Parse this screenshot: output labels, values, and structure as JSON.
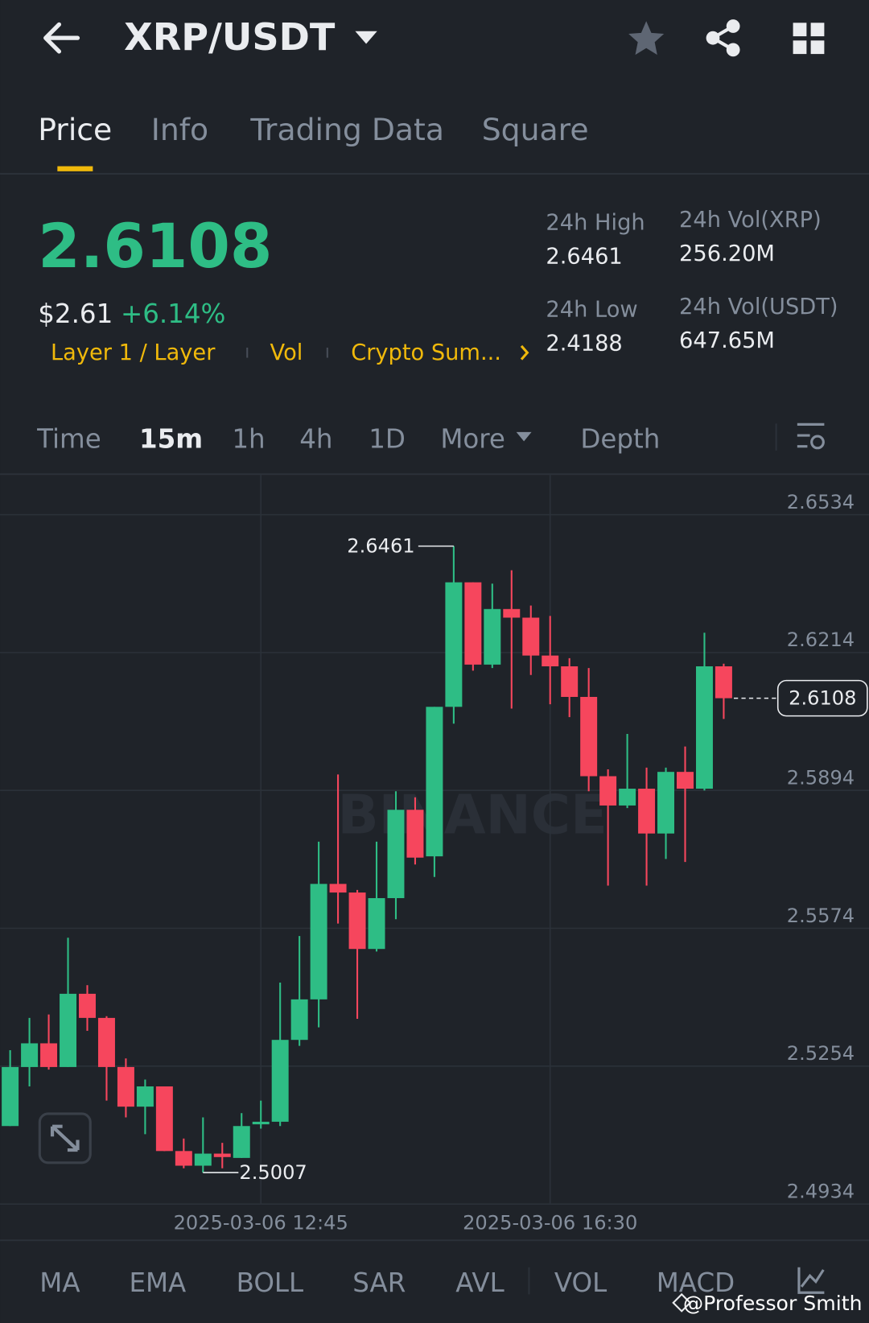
{
  "header": {
    "pair": "XRP/USDT"
  },
  "tabs": [
    "Price",
    "Info",
    "Trading Data",
    "Square"
  ],
  "ticker": {
    "price": "2.6108",
    "fiat": "$2.61",
    "change": "+6.14%",
    "tags": [
      "Layer 1 / Layer",
      "Vol",
      "Crypto Sum..."
    ],
    "stats": [
      {
        "label": "24h High",
        "value": "2.6461"
      },
      {
        "label": "24h Vol(XRP)",
        "value": "256.20M"
      },
      {
        "label": "24h Low",
        "value": "2.4188"
      },
      {
        "label": "24h Vol(USDT)",
        "value": "647.65M"
      }
    ]
  },
  "intervals": [
    "Time",
    "15m",
    "1h",
    "4h",
    "1D",
    "More",
    "Depth"
  ],
  "chart_data": {
    "type": "candlestick",
    "categories": [
      null,
      null,
      null,
      null,
      null,
      null,
      null,
      null,
      null,
      null,
      null,
      null,
      null,
      "2025-03-06 12:45",
      null,
      null,
      null,
      null,
      null,
      null,
      null,
      null,
      null,
      null,
      null,
      null,
      null,
      null,
      "2025-03-06 16:30",
      null,
      null,
      null,
      null,
      null,
      null,
      null,
      null,
      null
    ],
    "open": [
      2.5115,
      2.5252,
      2.5307,
      2.5252,
      2.5422,
      2.5366,
      2.5252,
      2.516,
      2.5207,
      2.5057,
      2.5023,
      2.5051,
      2.5041,
      2.5119,
      2.5125,
      2.5315,
      2.5409,
      2.5677,
      2.5657,
      2.5526,
      2.5644,
      2.5849,
      2.5741,
      2.6088,
      2.6377,
      2.6186,
      2.6315,
      2.6295,
      2.6207,
      2.6182,
      2.6111,
      2.5927,
      2.5859,
      2.5898,
      2.5794,
      2.5937,
      2.5898,
      2.6182
    ],
    "high": [
      2.5291,
      2.5366,
      2.5374,
      2.5552,
      2.5442,
      2.537,
      2.5272,
      2.5223,
      2.5207,
      2.5086,
      2.5135,
      2.5076,
      2.5145,
      2.5174,
      2.5448,
      2.5556,
      2.5775,
      2.5931,
      2.5663,
      2.5775,
      2.5892,
      2.5878,
      2.6088,
      2.6461,
      2.6377,
      2.6374,
      2.6405,
      2.6323,
      2.6299,
      2.6201,
      2.6178,
      2.5943,
      2.6025,
      2.5947,
      2.5947,
      2.5996,
      2.626,
      2.6188
    ],
    "low": [
      2.5115,
      2.5207,
      2.5246,
      2.5252,
      2.5336,
      2.5174,
      2.5135,
      2.5096,
      2.5057,
      2.5017,
      2.5007,
      2.5017,
      2.5041,
      2.5109,
      2.5115,
      2.5301,
      2.5344,
      2.5585,
      2.5364,
      2.552,
      2.5595,
      2.5722,
      2.5693,
      2.6049,
      2.6172,
      2.6178,
      2.6084,
      2.6162,
      2.6094,
      2.6064,
      2.5892,
      2.5673,
      2.5853,
      2.5673,
      2.5735,
      2.5728,
      2.5894,
      2.606
    ],
    "close": [
      2.5252,
      2.5307,
      2.5252,
      2.5422,
      2.5366,
      2.5252,
      2.516,
      2.5207,
      2.5057,
      2.5023,
      2.5051,
      2.5043,
      2.5115,
      2.5125,
      2.5315,
      2.5409,
      2.5677,
      2.5657,
      2.5526,
      2.5644,
      2.5849,
      2.5738,
      2.6088,
      2.6377,
      2.6186,
      2.6315,
      2.6295,
      2.6207,
      2.6182,
      2.6111,
      2.5927,
      2.5859,
      2.5898,
      2.5794,
      2.5937,
      2.5898,
      2.6182,
      2.6108
    ],
    "up_color": "#2ebd85",
    "down_color": "#f6465d",
    "ylim": [
      2.4934,
      2.6626
    ],
    "yticks": [
      2.4934,
      2.5254,
      2.5574,
      2.5894,
      2.6214,
      2.6534
    ],
    "grid": true,
    "last_price": 2.6108,
    "watermark": "BINANCE"
  },
  "indicators": [
    "MA",
    "EMA",
    "BOLL",
    "SAR",
    "AVL",
    "VOL",
    "MACD"
  ],
  "credit": "@Professor Smith"
}
